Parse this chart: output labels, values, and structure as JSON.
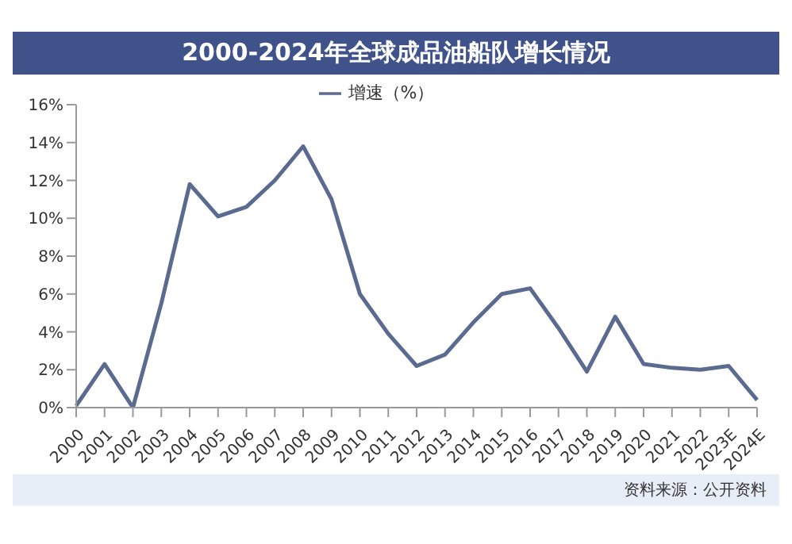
{
  "chart_data": {
    "type": "line",
    "title": "2000-2024年全球成品油船队增长情况",
    "categories": [
      "2000",
      "2001",
      "2002",
      "2003",
      "2004",
      "2005",
      "2006",
      "2007",
      "2008",
      "2009",
      "2010",
      "2011",
      "2012",
      "2013",
      "2014",
      "2015",
      "2016",
      "2017",
      "2018",
      "2019",
      "2020",
      "2021",
      "2022",
      "2023E",
      "2024E"
    ],
    "series": [
      {
        "name": "增速（%）",
        "color": "#5b6a8f",
        "values": [
          0.1,
          2.3,
          0,
          5.5,
          11.8,
          10.1,
          10.6,
          12,
          13.8,
          11,
          6,
          3.9,
          2.2,
          2.8,
          4.5,
          6,
          6.3,
          4.2,
          1.9,
          4.8,
          2.3,
          2.1,
          2.0,
          2.2,
          0.4
        ]
      }
    ],
    "ylim": [
      0,
      16
    ],
    "yticks": [
      {
        "value": 0,
        "label": "0%"
      },
      {
        "value": 2,
        "label": "2%"
      },
      {
        "value": 4,
        "label": "4%"
      },
      {
        "value": 6,
        "label": "6%"
      },
      {
        "value": 8,
        "label": "8%"
      },
      {
        "value": 10,
        "label": "10%"
      },
      {
        "value": 12,
        "label": "12%"
      },
      {
        "value": 14,
        "label": "14%"
      },
      {
        "value": 16,
        "label": "16%"
      }
    ],
    "grid": false,
    "legend": "top",
    "marker": "none",
    "line_style": "solid",
    "annotations": [
      "资料来源：公开资料"
    ]
  }
}
